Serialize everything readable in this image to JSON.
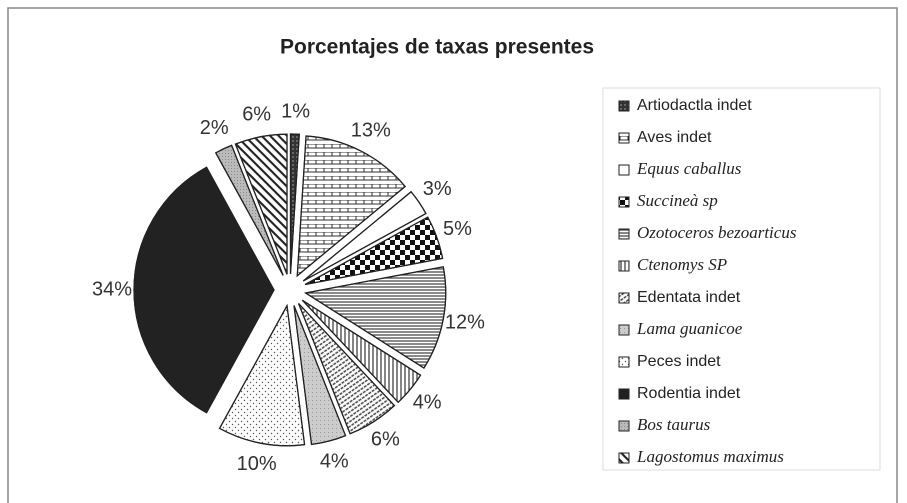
{
  "chart_data": {
    "type": "pie",
    "title": "Porcentajes de taxas presentes",
    "categories": [
      "Artiodactla indet",
      "Aves indet",
      "Equus caballus",
      "Succineà sp",
      "Ozotoceros bezoarticus",
      "Ctenomys SP",
      "Edentata indet",
      "Lama guanicoe",
      "Peces indet",
      "Rodentia indet",
      "Bos taurus",
      "Lagostomus maximus"
    ],
    "values": [
      1,
      13,
      3,
      5,
      12,
      4,
      6,
      4,
      10,
      34,
      2,
      6
    ],
    "value_labels": [
      "1%",
      "13%",
      "3%",
      "5%",
      "12%",
      "4%",
      "6%",
      "4%",
      "10%",
      "34%",
      "2%",
      "6%"
    ],
    "colors": [
      "#333333",
      "#ffffff",
      "#ffffff",
      "#ffffff",
      "#ffffff",
      "#ffffff",
      "#ffffff",
      "#cccccc",
      "#ffffff",
      "#222222",
      "#bbbbbb",
      "#ffffff"
    ],
    "legend": "right"
  }
}
